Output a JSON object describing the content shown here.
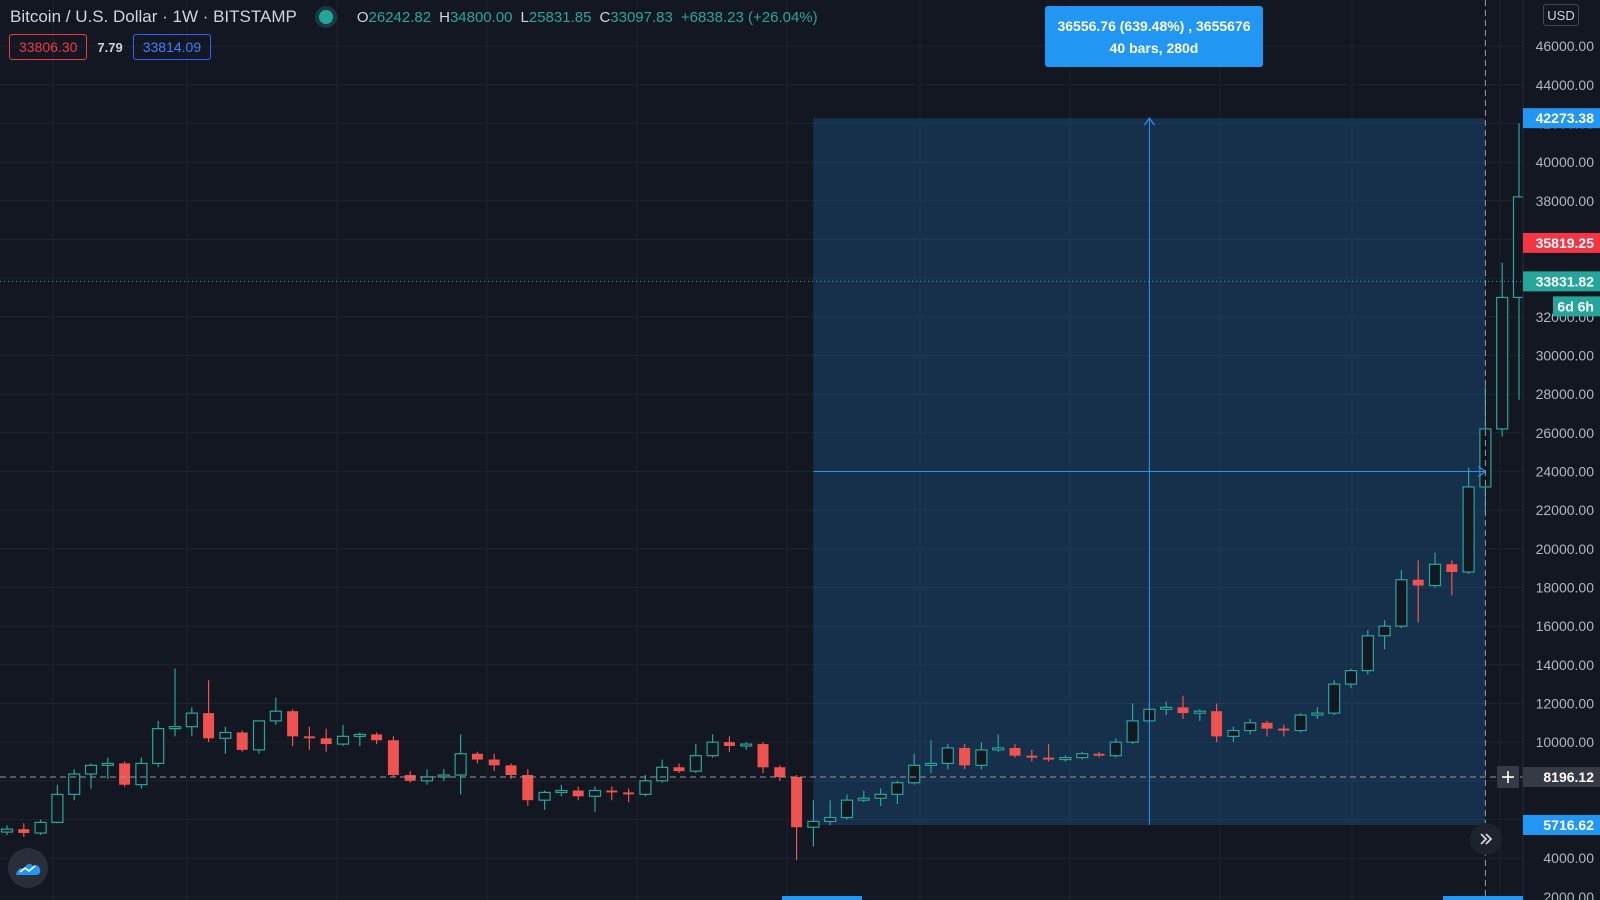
{
  "header": {
    "symbol_title": "Bitcoin / U.S. Dollar · 1W · BITSTAMP",
    "ohlc": {
      "open_label": "O",
      "open": "26242.82",
      "high_label": "H",
      "high": "34800.00",
      "low_label": "L",
      "low": "25831.85",
      "close_label": "C",
      "close": "33097.83",
      "change": "+6838.23 (+26.04%)"
    },
    "bid": "33806.30",
    "spread": "7.79",
    "ask": "33814.09"
  },
  "currency": "USD",
  "measure": {
    "line1": "36556.76 (639.48%) , 3655676",
    "line2": "40 bars, 280d",
    "top_price": 42273.38,
    "bottom_price": 5716.62,
    "start_bar": 48,
    "end_bar": 88
  },
  "price_scale": {
    "ticks": [
      "2000.00",
      "4000.00",
      "6000.00",
      "8000.00",
      "10000.00",
      "12000.00",
      "14000.00",
      "16000.00",
      "18000.00",
      "20000.00",
      "22000.00",
      "24000.00",
      "26000.00",
      "28000.00",
      "30000.00",
      "32000.00",
      "34000.00",
      "36000.00",
      "38000.00",
      "40000.00",
      "42000.00",
      "44000.00",
      "46000.00"
    ],
    "labels": {
      "measure_top": "42273.38",
      "prev_close": "35819.25",
      "last_price": "33831.82",
      "countdown": "6d 6h",
      "crosshair": "8196.12",
      "measure_bottom": "5716.62"
    },
    "label_values": {
      "measure_top": 42273.38,
      "prev_close": 35819.25,
      "last_price": 33831.82,
      "crosshair": 8196.12,
      "measure_bottom": 5716.62
    }
  },
  "colors": {
    "up": "#26a69a",
    "down": "#ef5350",
    "measure": "#2196f3",
    "background": "#131722"
  },
  "icons": {
    "scroll_right": "double-chevron-right-icon",
    "logo": "tradingview-logo-icon",
    "crosshair_add": "plus-icon"
  },
  "chart_data": {
    "type": "candlestick",
    "price_range": [
      0,
      47000
    ],
    "candles": [
      {
        "o": 5350,
        "h": 5700,
        "l": 5200,
        "c": 5500
      },
      {
        "o": 5500,
        "h": 5800,
        "l": 5100,
        "c": 5300
      },
      {
        "o": 5300,
        "h": 6000,
        "l": 5200,
        "c": 5850
      },
      {
        "o": 5850,
        "h": 7800,
        "l": 5800,
        "c": 7300
      },
      {
        "o": 7300,
        "h": 8600,
        "l": 7000,
        "c": 8350
      },
      {
        "o": 8350,
        "h": 8900,
        "l": 7600,
        "c": 8800
      },
      {
        "o": 8800,
        "h": 9200,
        "l": 8100,
        "c": 8900
      },
      {
        "o": 8900,
        "h": 9000,
        "l": 7700,
        "c": 7800
      },
      {
        "o": 7800,
        "h": 9200,
        "l": 7600,
        "c": 8900
      },
      {
        "o": 8900,
        "h": 11100,
        "l": 8700,
        "c": 10700
      },
      {
        "o": 10700,
        "h": 13800,
        "l": 10300,
        "c": 10800
      },
      {
        "o": 10800,
        "h": 11800,
        "l": 10300,
        "c": 11500
      },
      {
        "o": 11500,
        "h": 13200,
        "l": 10000,
        "c": 10200
      },
      {
        "o": 10200,
        "h": 10800,
        "l": 9400,
        "c": 10500
      },
      {
        "o": 10500,
        "h": 10600,
        "l": 9500,
        "c": 9600
      },
      {
        "o": 9600,
        "h": 11100,
        "l": 9400,
        "c": 11100
      },
      {
        "o": 11100,
        "h": 12300,
        "l": 10900,
        "c": 11600
      },
      {
        "o": 11600,
        "h": 11700,
        "l": 9800,
        "c": 10300
      },
      {
        "o": 10300,
        "h": 10800,
        "l": 9600,
        "c": 10200
      },
      {
        "o": 10200,
        "h": 10700,
        "l": 9500,
        "c": 9900
      },
      {
        "o": 9900,
        "h": 10900,
        "l": 9800,
        "c": 10300
      },
      {
        "o": 10300,
        "h": 10500,
        "l": 9800,
        "c": 10400
      },
      {
        "o": 10400,
        "h": 10500,
        "l": 9900,
        "c": 10100
      },
      {
        "o": 10100,
        "h": 10300,
        "l": 8200,
        "c": 8300
      },
      {
        "o": 8300,
        "h": 8500,
        "l": 7900,
        "c": 8000
      },
      {
        "o": 8000,
        "h": 8600,
        "l": 7800,
        "c": 8200
      },
      {
        "o": 8200,
        "h": 8600,
        "l": 8000,
        "c": 8300
      },
      {
        "o": 8300,
        "h": 10400,
        "l": 7300,
        "c": 9400
      },
      {
        "o": 9400,
        "h": 9500,
        "l": 8900,
        "c": 9100
      },
      {
        "o": 9100,
        "h": 9400,
        "l": 8500,
        "c": 8800
      },
      {
        "o": 8800,
        "h": 8900,
        "l": 8100,
        "c": 8300
      },
      {
        "o": 8300,
        "h": 8600,
        "l": 6700,
        "c": 7000
      },
      {
        "o": 7000,
        "h": 7500,
        "l": 6500,
        "c": 7400
      },
      {
        "o": 7400,
        "h": 7800,
        "l": 7200,
        "c": 7500
      },
      {
        "o": 7500,
        "h": 7700,
        "l": 7000,
        "c": 7200
      },
      {
        "o": 7200,
        "h": 7700,
        "l": 6400,
        "c": 7500
      },
      {
        "o": 7500,
        "h": 7700,
        "l": 7000,
        "c": 7400
      },
      {
        "o": 7400,
        "h": 7600,
        "l": 6900,
        "c": 7300
      },
      {
        "o": 7300,
        "h": 8300,
        "l": 7200,
        "c": 8000
      },
      {
        "o": 8000,
        "h": 9100,
        "l": 7900,
        "c": 8700
      },
      {
        "o": 8700,
        "h": 8900,
        "l": 8400,
        "c": 8500
      },
      {
        "o": 8500,
        "h": 9900,
        "l": 8400,
        "c": 9300
      },
      {
        "o": 9300,
        "h": 10400,
        "l": 9200,
        "c": 10000
      },
      {
        "o": 10000,
        "h": 10300,
        "l": 9500,
        "c": 9800
      },
      {
        "o": 9800,
        "h": 10000,
        "l": 9600,
        "c": 9900
      },
      {
        "o": 9900,
        "h": 10000,
        "l": 8400,
        "c": 8700
      },
      {
        "o": 8700,
        "h": 8800,
        "l": 8000,
        "c": 8200
      },
      {
        "o": 8200,
        "h": 8300,
        "l": 3900,
        "c": 5600
      },
      {
        "o": 5600,
        "h": 7000,
        "l": 4600,
        "c": 5900
      },
      {
        "o": 5900,
        "h": 7000,
        "l": 5700,
        "c": 6100
      },
      {
        "o": 6100,
        "h": 7300,
        "l": 6000,
        "c": 7000
      },
      {
        "o": 7000,
        "h": 7500,
        "l": 6900,
        "c": 7100
      },
      {
        "o": 7100,
        "h": 7600,
        "l": 6700,
        "c": 7300
      },
      {
        "o": 7300,
        "h": 8000,
        "l": 6800,
        "c": 7900
      },
      {
        "o": 7900,
        "h": 9400,
        "l": 7800,
        "c": 8800
      },
      {
        "o": 8800,
        "h": 10100,
        "l": 8400,
        "c": 8900
      },
      {
        "o": 8900,
        "h": 9900,
        "l": 8600,
        "c": 9700
      },
      {
        "o": 9700,
        "h": 9900,
        "l": 8600,
        "c": 8800
      },
      {
        "o": 8800,
        "h": 10000,
        "l": 8600,
        "c": 9600
      },
      {
        "o": 9600,
        "h": 10400,
        "l": 9500,
        "c": 9700
      },
      {
        "o": 9700,
        "h": 9900,
        "l": 9200,
        "c": 9300
      },
      {
        "o": 9300,
        "h": 9600,
        "l": 9000,
        "c": 9200
      },
      {
        "o": 9200,
        "h": 9900,
        "l": 9000,
        "c": 9100
      },
      {
        "o": 9100,
        "h": 9300,
        "l": 9000,
        "c": 9200
      },
      {
        "o": 9200,
        "h": 9500,
        "l": 9100,
        "c": 9400
      },
      {
        "o": 9400,
        "h": 9500,
        "l": 9200,
        "c": 9300
      },
      {
        "o": 9300,
        "h": 10200,
        "l": 9200,
        "c": 10000
      },
      {
        "o": 10000,
        "h": 12000,
        "l": 9900,
        "c": 11100
      },
      {
        "o": 11100,
        "h": 12000,
        "l": 11000,
        "c": 11700
      },
      {
        "o": 11700,
        "h": 12100,
        "l": 11400,
        "c": 11800
      },
      {
        "o": 11800,
        "h": 12400,
        "l": 11200,
        "c": 11500
      },
      {
        "o": 11500,
        "h": 11700,
        "l": 11100,
        "c": 11600
      },
      {
        "o": 11600,
        "h": 12000,
        "l": 10000,
        "c": 10300
      },
      {
        "o": 10300,
        "h": 10800,
        "l": 10000,
        "c": 10600
      },
      {
        "o": 10600,
        "h": 11200,
        "l": 10400,
        "c": 11000
      },
      {
        "o": 11000,
        "h": 11100,
        "l": 10300,
        "c": 10700
      },
      {
        "o": 10700,
        "h": 10900,
        "l": 10300,
        "c": 10600
      },
      {
        "o": 10600,
        "h": 11500,
        "l": 10500,
        "c": 11400
      },
      {
        "o": 11400,
        "h": 11800,
        "l": 11200,
        "c": 11500
      },
      {
        "o": 11500,
        "h": 13200,
        "l": 11400,
        "c": 13000
      },
      {
        "o": 13000,
        "h": 13800,
        "l": 12800,
        "c": 13700
      },
      {
        "o": 13700,
        "h": 15800,
        "l": 13500,
        "c": 15500
      },
      {
        "o": 15500,
        "h": 16300,
        "l": 14800,
        "c": 16000
      },
      {
        "o": 16000,
        "h": 18900,
        "l": 15900,
        "c": 18400
      },
      {
        "o": 18400,
        "h": 19400,
        "l": 16200,
        "c": 18100
      },
      {
        "o": 18100,
        "h": 19800,
        "l": 18000,
        "c": 19200
      },
      {
        "o": 19200,
        "h": 19400,
        "l": 17600,
        "c": 18800
      },
      {
        "o": 18800,
        "h": 24200,
        "l": 18700,
        "c": 23200
      },
      {
        "o": 23200,
        "h": 28400,
        "l": 21800,
        "c": 26200
      },
      {
        "o": 26200,
        "h": 34800,
        "l": 25800,
        "c": 33000
      },
      {
        "o": 33000,
        "h": 42000,
        "l": 27700,
        "c": 38200
      },
      {
        "o": 38200,
        "h": 40100,
        "l": 30200,
        "c": 35800
      }
    ]
  }
}
